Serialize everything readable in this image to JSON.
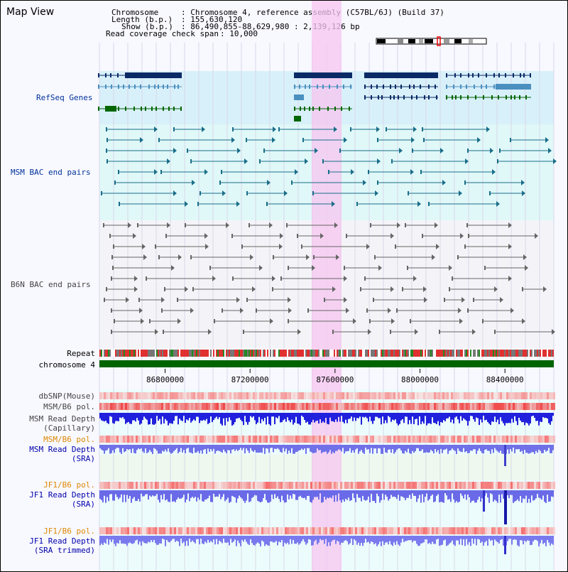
{
  "title": "Map View",
  "info": {
    "chromosome_key": "Chromosome",
    "chromosome_val": ": Chromosome 4, reference assembly (C57BL/6J) (Build 37)",
    "length_key": "Length (b.p.)",
    "length_val": ": 155,630,120",
    "show_key": "Show (b.p.)",
    "show_val": ": 86,490,855-88,629,980 : 2,139,126 bp",
    "coverage_key": "Read coverage check span",
    "coverage_val": ": 10,000"
  },
  "tracks": {
    "refseq": "RefSeq Genes",
    "msm_bac": "MSM BAC end pairs",
    "b6n_bac": "B6N BAC end pairs",
    "repeat": "Repeat",
    "chromosome": "chromosome 4",
    "dbsnp": "dbSNP(Mouse)",
    "msm_b6_pol": "MSM/B6 pol.",
    "msm_read_depth_cap_1": "MSM Read Depth",
    "msm_read_depth_cap_2": "(Capillary)",
    "msm_b6_pol_2": "MSM/B6 pol.",
    "msm_read_depth_sra_1": "MSM Read Depth",
    "msm_read_depth_sra_2": "(SRA)",
    "jf1_b6_pol": "JF1/B6 pol.",
    "jf1_read_depth_sra_1": "JF1 Read Depth",
    "jf1_read_depth_sra_2": "(SRA)",
    "jf1_b6_pol_2": "JF1/B6 pol.",
    "jf1_read_depth_trim_1": "JF1 Read Depth",
    "jf1_read_depth_trim_2": "(SRA trimmed)"
  },
  "axis": {
    "ticks": [
      "86800000",
      "87200000",
      "87600000",
      "88000000",
      "88400000"
    ],
    "range_bp": [
      86490855,
      88629980
    ]
  },
  "colors": {
    "highlight": "#f7c6f0",
    "refseq_bg": "#d8f0fa",
    "msm_bg": "#e0f8f8",
    "b6n_bg": "#f4f4f8",
    "chromosome": "#006400",
    "msm_label": "#003399",
    "orange_label": "#dd8800",
    "blue_label": "#0000aa",
    "gene_dark": "#0a2a66",
    "gene_mid": "#4a8fbf",
    "gene_green": "#006600",
    "bac_msm": "#1a6e8a",
    "bac_b6n": "#666666"
  }
}
